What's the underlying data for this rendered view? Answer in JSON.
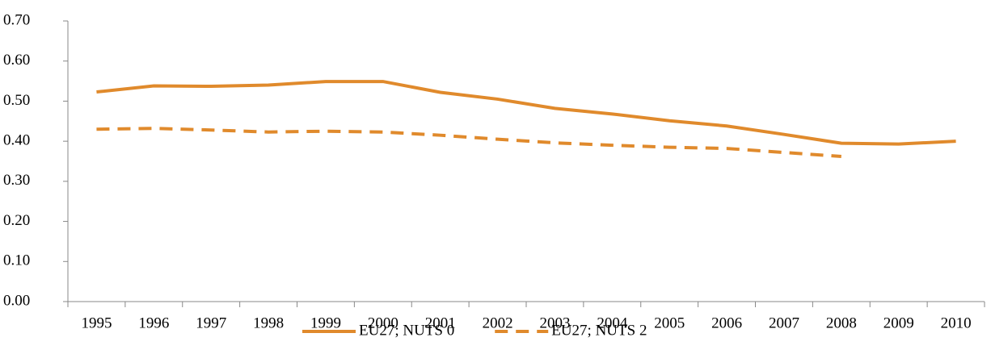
{
  "chart_data": {
    "type": "line",
    "categories": [
      "1995",
      "1996",
      "1997",
      "1998",
      "1999",
      "2000",
      "2001",
      "2002",
      "2003",
      "2004",
      "2005",
      "2006",
      "2007",
      "2008",
      "2009",
      "2010"
    ],
    "series": [
      {
        "name": "EU27; NUTS 0",
        "color": "#e08a2c",
        "line_style": "solid",
        "values": [
          0.523,
          0.538,
          0.537,
          0.54,
          0.549,
          0.549,
          0.522,
          0.505,
          0.482,
          0.468,
          0.451,
          0.438,
          0.417,
          0.395,
          0.393,
          0.4
        ]
      },
      {
        "name": "EU27; NUTS 2",
        "color": "#e08a2c",
        "line_style": "dashed",
        "values": [
          0.43,
          0.432,
          0.428,
          0.423,
          0.425,
          0.423,
          0.415,
          0.405,
          0.396,
          0.39,
          0.385,
          0.382,
          0.372,
          0.362,
          null,
          null
        ]
      }
    ],
    "ylim": [
      0,
      0.7
    ],
    "yticks": [
      {
        "value": 0,
        "label": "0.00"
      },
      {
        "value": 0.1,
        "label": "0.10"
      },
      {
        "value": 0.2,
        "label": "0.20"
      },
      {
        "value": 0.3,
        "label": "0.30"
      },
      {
        "value": 0.4,
        "label": "0.40"
      },
      {
        "value": 0.5,
        "label": "0.50"
      },
      {
        "value": 0.6,
        "label": "0.60"
      },
      {
        "value": 0.7,
        "label": "0.70"
      }
    ],
    "legend": "bottom"
  }
}
